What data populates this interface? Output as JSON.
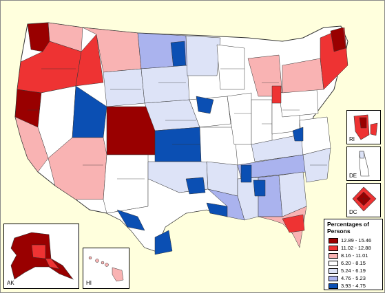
{
  "map": {
    "colors": {
      "c1": "#990000",
      "c2": "#ee3333",
      "c3": "#f9b3b3",
      "c4": "#ffffff",
      "c5": "#dde3f7",
      "c6": "#aab3ee",
      "c7": "#0b4fb3",
      "boundary": "#333333",
      "background": "#ffffdd"
    }
  },
  "insets": {
    "ak": {
      "label": "AK"
    },
    "hi": {
      "label": "HI"
    },
    "ri": {
      "label": "RI"
    },
    "de": {
      "label": "DE"
    },
    "dc": {
      "label": "DC"
    }
  },
  "legend": {
    "title": "Percentages of Persons",
    "items": [
      {
        "range": "12.89 - 15.46",
        "color": "#990000"
      },
      {
        "range": "11.02 - 12.88",
        "color": "#ee3333"
      },
      {
        "range": "8.16 - 11.01",
        "color": "#f9b3b3"
      },
      {
        "range": "6.20 - 8.15",
        "color": "#ffffff"
      },
      {
        "range": "5.24 - 6.19",
        "color": "#dde3f7"
      },
      {
        "range": "4.76 - 5.23",
        "color": "#aab3ee"
      },
      {
        "range": "3.93 - 4.75",
        "color": "#0b4fb3"
      }
    ]
  }
}
